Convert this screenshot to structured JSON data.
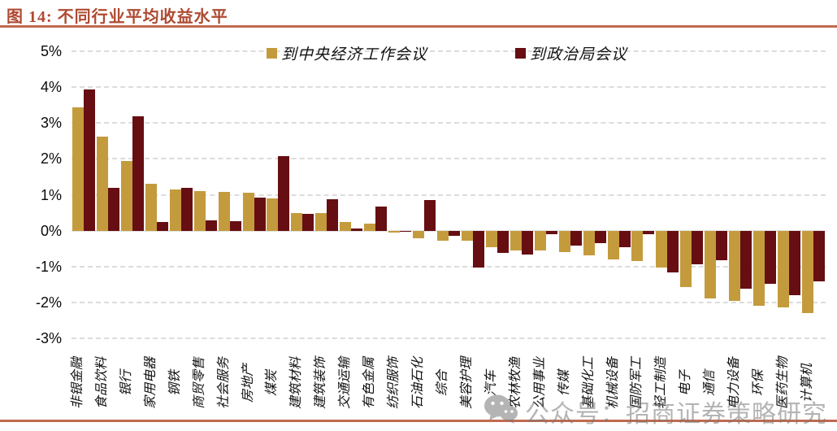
{
  "figure": {
    "title": "图 14:  不同行业平均收益水平"
  },
  "watermark": {
    "text": "公众号：招商证券策略研究",
    "icon": "wechat-icon"
  },
  "colors": {
    "title_red": "#AF4A31",
    "rule_red": "#C06A50",
    "series_gold": "#C49B3C",
    "series_maroon": "#660E12",
    "gridline": "#DCDCDC"
  },
  "chart_data": {
    "type": "bar",
    "title": "不同行业平均收益水平",
    "ylabel": "",
    "xlabel": "",
    "ylim": [
      -3,
      5
    ],
    "ytick_step": 1,
    "ytick_suffix": "%",
    "grid": "horizontal-dashed",
    "legend_position": "top-inside",
    "categories": [
      "非银金融",
      "食品饮料",
      "银行",
      "家用电器",
      "钢铁",
      "商贸零售",
      "社会服务",
      "房地产",
      "煤炭",
      "建筑材料",
      "建筑装饰",
      "交通运输",
      "有色金属",
      "纺织服饰",
      "石油石化",
      "综合",
      "美容护理",
      "汽车",
      "农林牧渔",
      "公用事业",
      "传媒",
      "基础化工",
      "机械设备",
      "国防军工",
      "轻工制造",
      "电子",
      "通信",
      "电力设备",
      "环保",
      "医药生物",
      "计算机"
    ],
    "series": [
      {
        "name": "到中央经济工作会议",
        "color": "#C49B3C",
        "values": [
          3.43,
          2.62,
          1.94,
          1.3,
          1.15,
          1.11,
          1.07,
          1.05,
          0.9,
          0.49,
          0.48,
          0.23,
          0.19,
          -0.05,
          -0.21,
          -0.27,
          -0.28,
          -0.46,
          -0.55,
          -0.56,
          -0.59,
          -0.69,
          -0.8,
          -0.84,
          -1.03,
          -1.58,
          -1.9,
          -1.95,
          -2.09,
          -2.15,
          -2.3
        ]
      },
      {
        "name": "到政治局会议",
        "color": "#660E12",
        "values": [
          3.94,
          1.19,
          3.18,
          0.23,
          1.2,
          0.28,
          0.27,
          0.92,
          2.07,
          0.46,
          0.87,
          0.06,
          0.68,
          -0.03,
          0.85,
          -0.15,
          -1.03,
          -0.62,
          -0.66,
          -0.1,
          -0.41,
          -0.34,
          -0.47,
          -0.11,
          -1.16,
          -0.93,
          -0.82,
          -1.62,
          -1.48,
          -1.81,
          -1.42
        ]
      }
    ]
  }
}
